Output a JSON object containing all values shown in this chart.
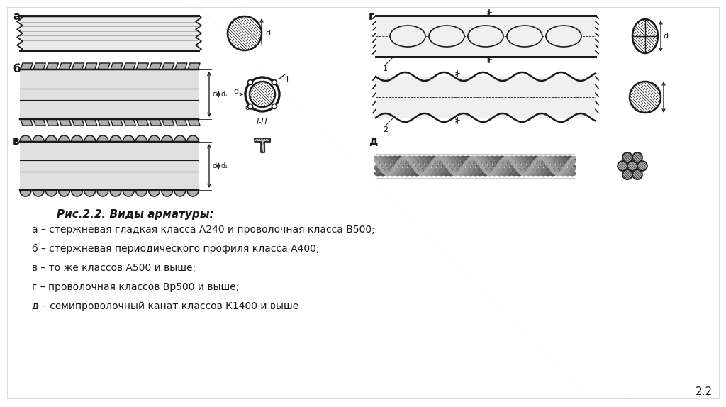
{
  "title": "Рис.2.2. Виды арматуры:",
  "caption_lines": [
    "а – стержневая гладкая класса А240 и проволочная класса В500;",
    "б – стержневая периодического профиля класса А400;",
    "в – то же классов А500 и выше;",
    "г – проволочная классов Вр500 и выше;",
    "д – семипроволочный канат классов К1400 и выше"
  ],
  "page_number": "2.2",
  "bg_color": "#ffffff",
  "line_color": "#1a1a1a",
  "fill_light": "#f0f0f0",
  "fill_medium": "#d0d0d0",
  "fill_dark": "#888888"
}
